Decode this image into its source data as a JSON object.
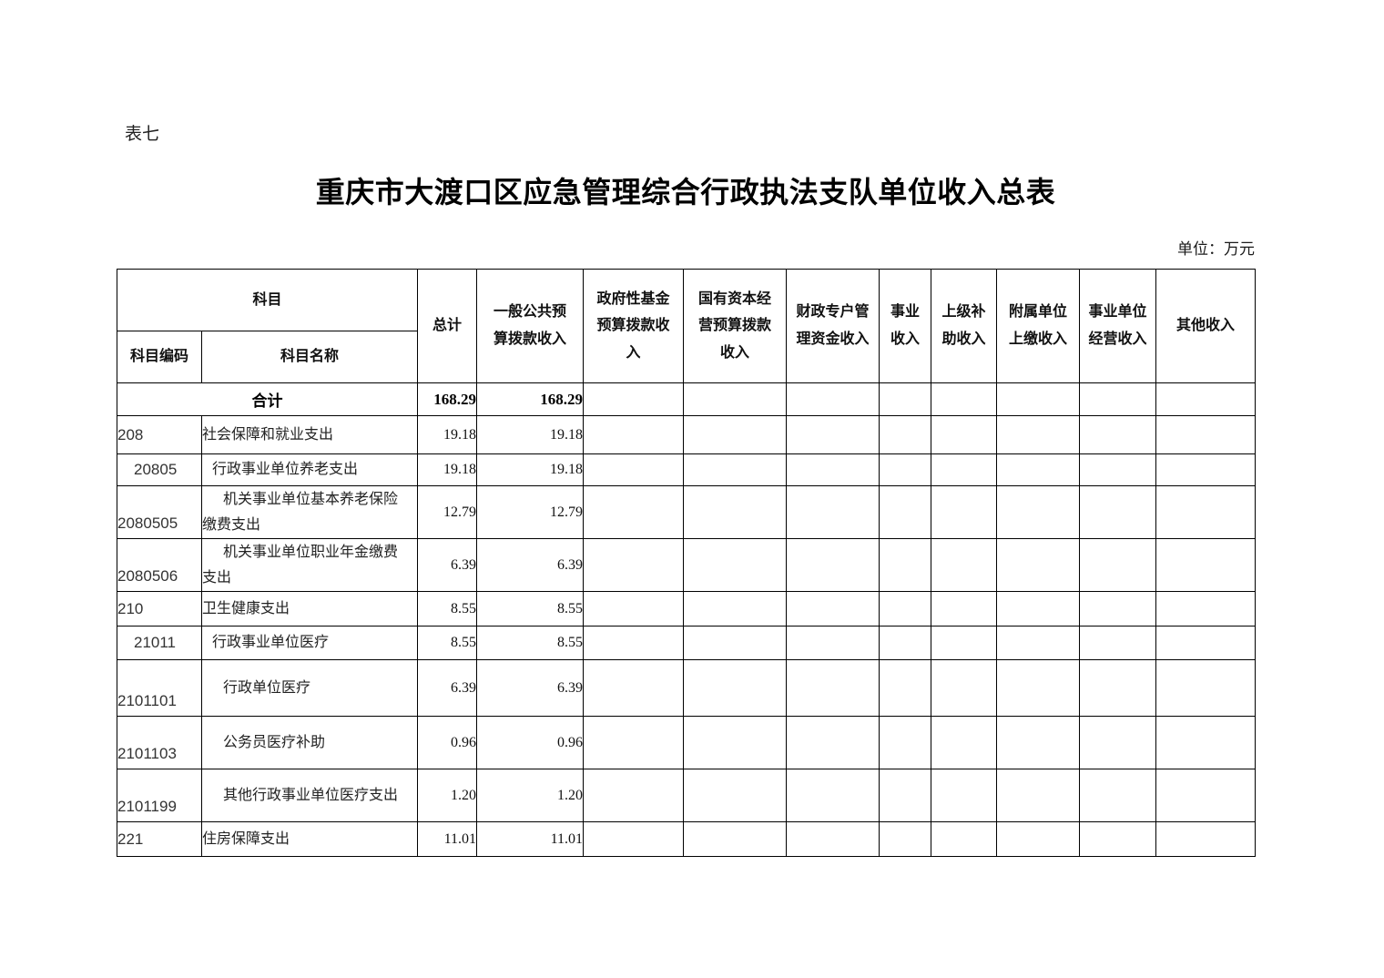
{
  "page": {
    "table_label": "表七",
    "title": "重庆市大渡口区应急管理综合行政执法支队单位收入总表",
    "unit_note": "单位：万元"
  },
  "table": {
    "header": {
      "subject": "科目",
      "subject_code": "科目编码",
      "subject_name": "科目名称",
      "columns": [
        "总计",
        "一般公共预\n算拨款收入",
        "政府性基金\n预算拨款收\n入",
        "国有资本经\n营预算拨款\n收入",
        "财政专户管\n理资金收入",
        "事业\n收入",
        "上级补\n助收入",
        "附属单位\n上缴收入",
        "事业单位\n经营收入",
        "其他收入"
      ]
    },
    "total_row": {
      "label": "合计",
      "values": {
        "total": "168.29",
        "general_public_budget": "168.29"
      }
    },
    "rows": [
      {
        "code": "208",
        "level": 1,
        "name": "社会保障和就业支出",
        "total": "19.18",
        "general_public_budget": "19.18"
      },
      {
        "code": "20805",
        "level": 2,
        "name": "行政事业单位养老支出",
        "total": "19.18",
        "general_public_budget": "19.18"
      },
      {
        "code": "2080505",
        "level": 3,
        "name": "机关事业单位基本养老保险\n缴费支出",
        "total": "12.79",
        "general_public_budget": "12.79"
      },
      {
        "code": "2080506",
        "level": 3,
        "name": "机关事业单位职业年金缴费\n支出",
        "total": "6.39",
        "general_public_budget": "6.39"
      },
      {
        "code": "210",
        "level": 1,
        "name": "卫生健康支出",
        "total": "8.55",
        "general_public_budget": "8.55"
      },
      {
        "code": "21011",
        "level": 2,
        "name": "行政事业单位医疗",
        "total": "8.55",
        "general_public_budget": "8.55"
      },
      {
        "code": "2101101",
        "level": 3,
        "name": "行政单位医疗",
        "total": "6.39",
        "general_public_budget": "6.39"
      },
      {
        "code": "2101103",
        "level": 3,
        "name": "公务员医疗补助",
        "total": "0.96",
        "general_public_budget": "0.96"
      },
      {
        "code": "2101199",
        "level": 3,
        "name": "其他行政事业单位医疗支出",
        "total": "1.20",
        "general_public_budget": "1.20"
      },
      {
        "code": "221",
        "level": 1,
        "name": "住房保障支出",
        "total": "11.01",
        "general_public_budget": "11.01"
      }
    ]
  }
}
